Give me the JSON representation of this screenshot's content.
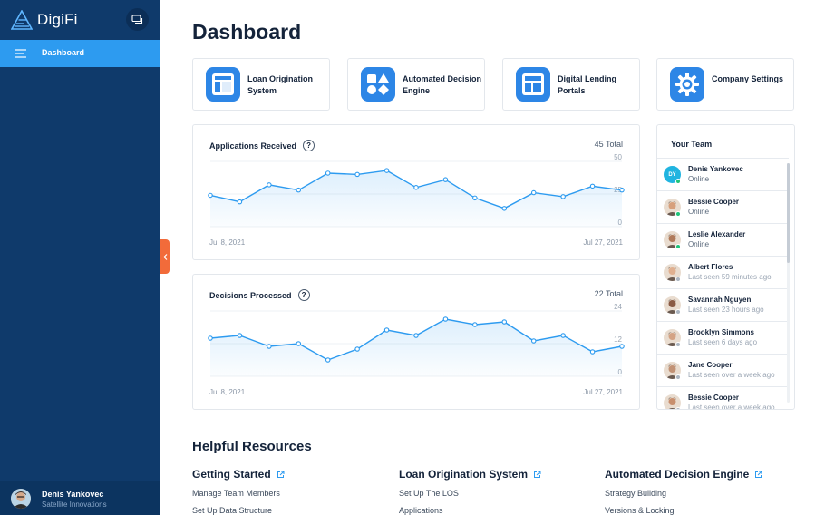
{
  "app": {
    "name": "DigiFi"
  },
  "sidebar": {
    "active_item": "Dashboard",
    "user": {
      "name": "Denis Yankovec",
      "company": "Satellite Innovations"
    }
  },
  "main": {
    "title": "Dashboard",
    "quick_links": [
      {
        "label": "Loan Origination System",
        "icon": "los-layout-icon"
      },
      {
        "label": "Automated Decision Engine",
        "icon": "shapes-icon"
      },
      {
        "label": "Digital Lending Portals",
        "icon": "portal-layout-icon"
      },
      {
        "label": "Company Settings",
        "icon": "gear-icon"
      }
    ],
    "charts": [
      {
        "title": "Applications Received",
        "total": "45 Total",
        "start": "Jul 8, 2021",
        "end": "Jul 27, 2021",
        "help": "?"
      },
      {
        "title": "Decisions Processed",
        "total": "22 Total",
        "start": "Jul 8, 2021",
        "end": "Jul 27, 2021",
        "help": "?"
      }
    ],
    "team": {
      "title": "Your Team",
      "members": [
        {
          "name": "Denis Yankovec",
          "status": "Online",
          "online": true,
          "initials": "DY"
        },
        {
          "name": "Bessie Cooper",
          "status": "Online",
          "online": true
        },
        {
          "name": "Leslie Alexander",
          "status": "Online",
          "online": true
        },
        {
          "name": "Albert Flores",
          "status": "Last seen 59 minutes ago",
          "online": false
        },
        {
          "name": "Savannah Nguyen",
          "status": "Last seen 23 hours ago",
          "online": false
        },
        {
          "name": "Brooklyn Simmons",
          "status": "Last seen 6 days ago",
          "online": false
        },
        {
          "name": "Jane Cooper",
          "status": "Last seen over a week ago",
          "online": false
        },
        {
          "name": "Bessie Cooper",
          "status": "Last seen over a week ago",
          "online": false
        }
      ]
    },
    "resources": {
      "title": "Helpful Resources",
      "columns": [
        {
          "heading": "Getting Started",
          "links": [
            "Manage Team Members",
            "Set Up Data Structure"
          ]
        },
        {
          "heading": "Loan Origination System",
          "links": [
            "Set Up The LOS",
            "Applications"
          ]
        },
        {
          "heading": "Automated Decision Engine",
          "links": [
            "Strategy Building",
            "Versions & Locking"
          ]
        }
      ]
    }
  },
  "colors": {
    "sidebar": "#0f3a6b",
    "accent": "#2d9bf0",
    "icon_tile": "#2d86e6",
    "online": "#1fc47a",
    "offline": "#aab4c0",
    "collapse_tab": "#f26b3a"
  },
  "chart_data": [
    {
      "type": "area",
      "title": "Applications Received",
      "xlabel": "",
      "ylabel": "",
      "x_range": [
        "Jul 8, 2021",
        "Jul 27, 2021"
      ],
      "yticks": [
        0,
        25,
        50
      ],
      "ylim": [
        0,
        50
      ],
      "grid": true,
      "values": [
        24,
        19,
        32,
        28,
        41,
        40,
        43,
        30,
        36,
        22,
        14,
        26,
        23,
        31,
        28
      ]
    },
    {
      "type": "area",
      "title": "Decisions Processed",
      "xlabel": "",
      "ylabel": "",
      "x_range": [
        "Jul 8, 2021",
        "Jul 27, 2021"
      ],
      "yticks": [
        0,
        12,
        24
      ],
      "ylim": [
        0,
        24
      ],
      "grid": true,
      "values": [
        14,
        15,
        11,
        12,
        6,
        10,
        17,
        15,
        21,
        19,
        20,
        13,
        15,
        9,
        11
      ]
    }
  ]
}
